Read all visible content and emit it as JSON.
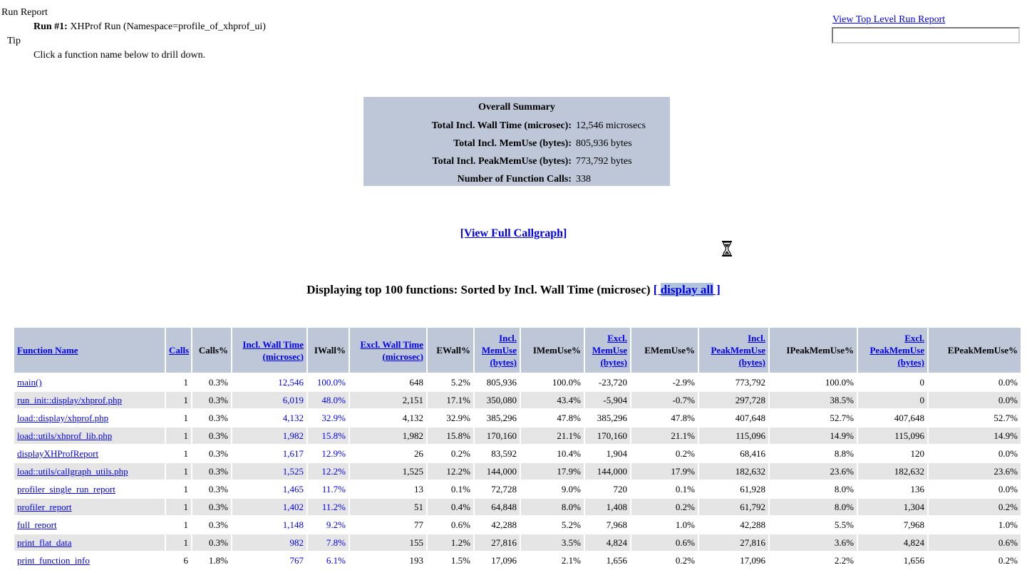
{
  "header": {
    "run_report_label": "Run Report",
    "run_number": "Run #1:",
    "run_description": " XHProf Run (Namespace=profile_of_xhprof_ui)",
    "tip_label": "Tip",
    "tip_text": "Click a function name below to drill down.",
    "top_link_label": "View Top Level Run Report",
    "run_input_value": ""
  },
  "summary": {
    "title": "Overall Summary",
    "rows": [
      {
        "label": "Total Incl. Wall Time (microsec):",
        "value": "12,546 microsecs"
      },
      {
        "label": "Total Incl. MemUse (bytes):",
        "value": "805,936 bytes"
      },
      {
        "label": "Total Incl. PeakMemUse (bytes):",
        "value": "773,792 bytes"
      },
      {
        "label": "Number of Function Calls:",
        "value": "338"
      }
    ]
  },
  "callgraph_link_label": "[View Full Callgraph]",
  "sort_heading": {
    "text": "Displaying top 100 functions: Sorted by Incl. Wall Time (microsec) ",
    "bracket_open": "[ ",
    "display_all_label": "display all",
    "bracket_close": " ]"
  },
  "table": {
    "columns": [
      {
        "label": "Function Name",
        "link": true
      },
      {
        "label": "Calls",
        "link": true
      },
      {
        "label": "Calls%",
        "link": false
      },
      {
        "lines": [
          "Incl. Wall Time",
          "(microsec)"
        ],
        "link": true
      },
      {
        "label": "IWall%",
        "link": false
      },
      {
        "lines": [
          "Excl. Wall Time",
          "(microsec)"
        ],
        "link": true
      },
      {
        "label": "EWall%",
        "link": false
      },
      {
        "lines": [
          "Incl.",
          "MemUse",
          "(bytes)"
        ],
        "link": true
      },
      {
        "label": "IMemUse%",
        "link": false
      },
      {
        "lines": [
          "Excl.",
          "MemUse",
          "(bytes)"
        ],
        "link": true
      },
      {
        "label": "EMemUse%",
        "link": false
      },
      {
        "lines": [
          "Incl.",
          "PeakMemUse",
          "(bytes)"
        ],
        "link": true
      },
      {
        "label": "IPeakMemUse%",
        "link": false
      },
      {
        "lines": [
          "Excl.",
          "PeakMemUse",
          "(bytes)"
        ],
        "link": true
      },
      {
        "label": "EPeakMemUse%",
        "link": false
      }
    ],
    "sorted_cell_indices": [
      2,
      3
    ],
    "rows": [
      {
        "function": "main()",
        "cells": [
          "1",
          "0.3%",
          "12,546",
          "100.0%",
          "648",
          "5.2%",
          "805,936",
          "100.0%",
          "-23,720",
          "-2.9%",
          "773,792",
          "100.0%",
          "0",
          "0.0%"
        ]
      },
      {
        "function": "run_init::display/xhprof.php",
        "cells": [
          "1",
          "0.3%",
          "6,019",
          "48.0%",
          "2,151",
          "17.1%",
          "350,080",
          "43.4%",
          "-5,904",
          "-0.7%",
          "297,728",
          "38.5%",
          "0",
          "0.0%"
        ]
      },
      {
        "function": "load::display/xhprof.php",
        "cells": [
          "1",
          "0.3%",
          "4,132",
          "32.9%",
          "4,132",
          "32.9%",
          "385,296",
          "47.8%",
          "385,296",
          "47.8%",
          "407,648",
          "52.7%",
          "407,648",
          "52.7%"
        ]
      },
      {
        "function": "load::utils/xhprof_lib.php",
        "cells": [
          "1",
          "0.3%",
          "1,982",
          "15.8%",
          "1,982",
          "15.8%",
          "170,160",
          "21.1%",
          "170,160",
          "21.1%",
          "115,096",
          "14.9%",
          "115,096",
          "14.9%"
        ]
      },
      {
        "function": "displayXHProfReport",
        "cells": [
          "1",
          "0.3%",
          "1,617",
          "12.9%",
          "26",
          "0.2%",
          "83,592",
          "10.4%",
          "1,904",
          "0.2%",
          "68,416",
          "8.8%",
          "120",
          "0.0%"
        ]
      },
      {
        "function": "load::utils/callgraph_utils.php",
        "cells": [
          "1",
          "0.3%",
          "1,525",
          "12.2%",
          "1,525",
          "12.2%",
          "144,000",
          "17.9%",
          "144,000",
          "17.9%",
          "182,632",
          "23.6%",
          "182,632",
          "23.6%"
        ]
      },
      {
        "function": "profiler_single_run_report",
        "cells": [
          "1",
          "0.3%",
          "1,465",
          "11.7%",
          "13",
          "0.1%",
          "72,728",
          "9.0%",
          "720",
          "0.1%",
          "61,928",
          "8.0%",
          "136",
          "0.0%"
        ]
      },
      {
        "function": "profiler_report",
        "cells": [
          "1",
          "0.3%",
          "1,402",
          "11.2%",
          "51",
          "0.4%",
          "64,848",
          "8.0%",
          "1,408",
          "0.2%",
          "61,792",
          "8.0%",
          "1,304",
          "0.2%"
        ]
      },
      {
        "function": "full_report",
        "cells": [
          "1",
          "0.3%",
          "1,148",
          "9.2%",
          "77",
          "0.6%",
          "42,288",
          "5.2%",
          "7,968",
          "1.0%",
          "42,288",
          "5.5%",
          "7,968",
          "1.0%"
        ]
      },
      {
        "function": "print_flat_data",
        "cells": [
          "1",
          "0.3%",
          "982",
          "7.8%",
          "155",
          "1.2%",
          "27,816",
          "3.5%",
          "4,824",
          "0.6%",
          "27,816",
          "3.6%",
          "4,824",
          "0.6%"
        ]
      },
      {
        "function": "print_function_info",
        "cells": [
          "6",
          "1.8%",
          "767",
          "6.1%",
          "193",
          "1.5%",
          "17,096",
          "2.1%",
          "1,656",
          "0.2%",
          "17,096",
          "2.2%",
          "1,656",
          "0.2%"
        ]
      }
    ]
  },
  "icons": {
    "cursor": "hourglass-cursor-icon"
  },
  "colors": {
    "link_blue": "#0000ee",
    "table_header_bg": "#bdc7d8",
    "summary_bg": "#bdc7d8",
    "alt_row_bg": "#e5e5e5",
    "display_all_highlight": "#b0c4de"
  }
}
